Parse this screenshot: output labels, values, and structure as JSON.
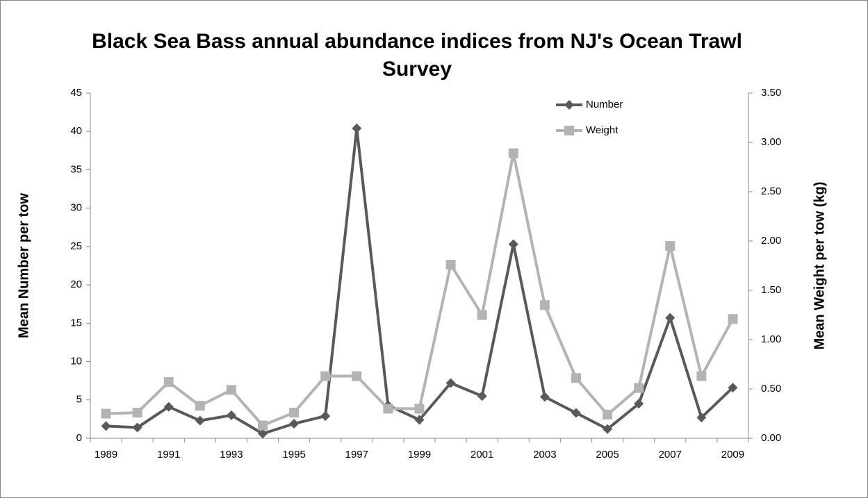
{
  "chart_data": {
    "type": "line",
    "title": "Black Sea Bass annual abundance indices from NJ's Ocean Trawl Survey",
    "y_label": "Mean Number per tow",
    "y2_label": "Mean Weight per tow (kg)",
    "categories": [
      "1989",
      null,
      "1991",
      null,
      "1993",
      null,
      "1995",
      null,
      "1997",
      null,
      "1999",
      null,
      "2001",
      null,
      "2003",
      null,
      "2005",
      null,
      "2007",
      null,
      "2009"
    ],
    "series": [
      {
        "name": "Number",
        "color": "#595959",
        "marker": "diamond",
        "values": [
          1.6,
          1.4,
          4.1,
          2.3,
          3.0,
          0.6,
          1.9,
          2.9,
          40.4,
          4.3,
          2.4,
          7.2,
          5.5,
          25.3,
          5.4,
          3.3,
          1.2,
          4.5,
          15.7,
          2.7,
          6.6
        ]
      },
      {
        "name": "Weight",
        "color": "#b3b3b3",
        "marker": "square",
        "axis": "y2",
        "values": [
          0.25,
          0.26,
          0.57,
          0.33,
          0.49,
          0.13,
          0.26,
          0.63,
          0.63,
          0.3,
          0.3,
          1.76,
          1.25,
          2.89,
          1.35,
          0.61,
          0.24,
          0.51,
          1.95,
          0.63,
          1.21
        ]
      }
    ],
    "ylim": [
      0,
      45
    ],
    "yticks": [
      0,
      5,
      10,
      15,
      20,
      25,
      30,
      35,
      40,
      45
    ],
    "y2lim": [
      0,
      3.5
    ],
    "y2ticks": [
      {
        "value": 0,
        "label": "0.00"
      },
      {
        "value": 0.5,
        "label": "0.50"
      },
      {
        "value": 1,
        "label": "1.00"
      },
      {
        "value": 1.5,
        "label": "1.50"
      },
      {
        "value": 2,
        "label": "2.00"
      },
      {
        "value": 2.5,
        "label": "2.50"
      },
      {
        "value": 3,
        "label": "3.00"
      },
      {
        "value": 3.5,
        "label": "3.50"
      }
    ],
    "grid": false,
    "legend": "top-right"
  }
}
